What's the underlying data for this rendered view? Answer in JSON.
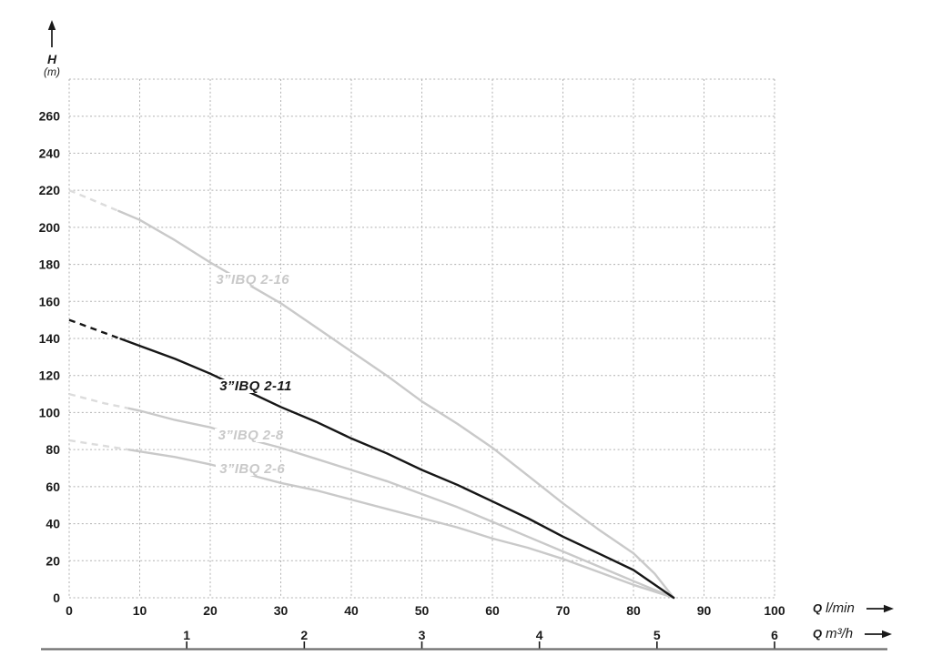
{
  "axes": {
    "h_symbol": "H",
    "h_unit": "(m)",
    "q_symbol": "Q",
    "q_lmin_unit": "l/min",
    "q_m3h_unit": "m³/h"
  },
  "colors": {
    "grid": "#b0b0b0",
    "tick_text": "#1a1a1a",
    "axis_line": "#6e6e6e",
    "gray_curve": "#c9c9c9",
    "gray_dash": "#dcdcdc",
    "black_curve": "#161616"
  },
  "chart_data": {
    "type": "line",
    "ylabel": "H (m)",
    "xlabel_primary": "Q l/min",
    "xlabel_secondary": "Q m³/h",
    "ylim": [
      0,
      280
    ],
    "xlim": [
      0,
      100
    ],
    "y_grid_step": 20,
    "grid": true,
    "y_ticks": [
      0,
      20,
      40,
      60,
      80,
      100,
      120,
      140,
      160,
      180,
      200,
      220,
      240,
      260
    ],
    "x_ticks_lmin": [
      0,
      10,
      20,
      30,
      40,
      50,
      60,
      70,
      80,
      90,
      100
    ],
    "x_ticks_m3h": [
      1,
      2,
      3,
      4,
      5,
      6
    ],
    "m3h_to_lmin": 16.6667,
    "series": [
      {
        "name": "3”IBQ 2-16",
        "color": "#c9c9c9",
        "dash_color": "#dcdcdc",
        "dash_until_q": 7,
        "label_q": 20.3,
        "label_h": 175.4,
        "points": [
          [
            0,
            220
          ],
          [
            5,
            212
          ],
          [
            10,
            204
          ],
          [
            15,
            193
          ],
          [
            20,
            181
          ],
          [
            25,
            170
          ],
          [
            30,
            159
          ],
          [
            35,
            146
          ],
          [
            40,
            133
          ],
          [
            45,
            120
          ],
          [
            50,
            106
          ],
          [
            55,
            94
          ],
          [
            60,
            81
          ],
          [
            65,
            66
          ],
          [
            70,
            51
          ],
          [
            75,
            37
          ],
          [
            80,
            24
          ],
          [
            83,
            13
          ],
          [
            85.7,
            0
          ]
        ]
      },
      {
        "name": "3”IBQ 2-8",
        "color": "#c9c9c9",
        "dash_color": "#dcdcdc",
        "dash_until_q": 8.5,
        "label_q": 20.6,
        "label_h": 91.4,
        "points": [
          [
            0,
            110
          ],
          [
            5,
            105
          ],
          [
            10,
            101
          ],
          [
            15,
            96
          ],
          [
            20,
            92
          ],
          [
            25,
            86
          ],
          [
            30,
            81
          ],
          [
            35,
            75
          ],
          [
            40,
            69
          ],
          [
            45,
            63
          ],
          [
            50,
            56
          ],
          [
            55,
            49
          ],
          [
            60,
            41
          ],
          [
            65,
            33
          ],
          [
            70,
            25
          ],
          [
            75,
            17
          ],
          [
            80,
            9
          ],
          [
            85.7,
            0
          ]
        ]
      },
      {
        "name": "3”IBQ 2-6",
        "color": "#c9c9c9",
        "dash_color": "#dcdcdc",
        "dash_until_q": 8.5,
        "label_q": 20.8,
        "label_h": 73.2,
        "points": [
          [
            0,
            85
          ],
          [
            5,
            82
          ],
          [
            10,
            79
          ],
          [
            15,
            76
          ],
          [
            20,
            72
          ],
          [
            25,
            67
          ],
          [
            30,
            62
          ],
          [
            35,
            58
          ],
          [
            40,
            53
          ],
          [
            45,
            48
          ],
          [
            50,
            43
          ],
          [
            55,
            38
          ],
          [
            60,
            32
          ],
          [
            65,
            27
          ],
          [
            70,
            21
          ],
          [
            75,
            14
          ],
          [
            80,
            7
          ],
          [
            85.7,
            0
          ]
        ]
      },
      {
        "name": "3”IBQ 2-11",
        "color": "#161616",
        "dash_color": "#161616",
        "dash_until_q": 7.3,
        "label_q": 20.8,
        "label_h": 117.9,
        "points": [
          [
            0,
            150
          ],
          [
            5,
            143
          ],
          [
            10,
            136
          ],
          [
            15,
            129
          ],
          [
            20,
            121
          ],
          [
            25,
            112
          ],
          [
            30,
            103
          ],
          [
            35,
            95
          ],
          [
            40,
            86
          ],
          [
            45,
            78
          ],
          [
            50,
            69
          ],
          [
            55,
            61
          ],
          [
            60,
            52
          ],
          [
            65,
            43
          ],
          [
            70,
            33
          ],
          [
            75,
            24
          ],
          [
            80,
            15
          ],
          [
            85.7,
            0
          ]
        ]
      }
    ]
  }
}
